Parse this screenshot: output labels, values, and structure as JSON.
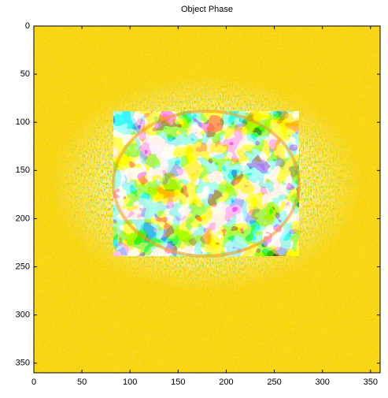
{
  "chart_data": {
    "type": "image",
    "title": "Object Phase",
    "xlim": [
      0,
      360
    ],
    "xticks": [
      0,
      50,
      100,
      150,
      200,
      250,
      300,
      350
    ],
    "ylim": [
      0,
      360
    ],
    "yticks": [
      0,
      50,
      100,
      150,
      200,
      250,
      300,
      350
    ],
    "y_reversed": true
  }
}
